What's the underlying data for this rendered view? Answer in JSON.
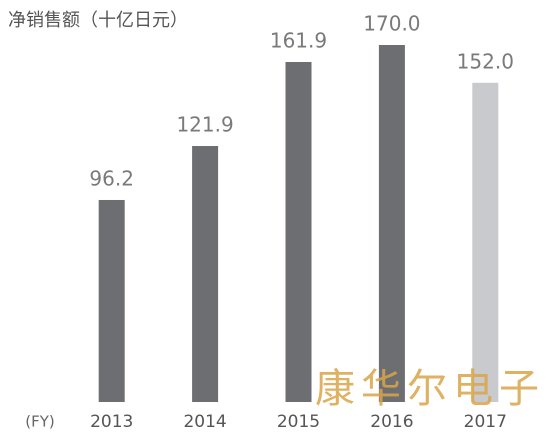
{
  "chart_data": {
    "type": "bar",
    "title": "净销售额（十亿日元）",
    "x_prefix": "(FY)",
    "categories": [
      "2013",
      "2014",
      "2015",
      "2016",
      "2017"
    ],
    "values": [
      96.2,
      121.9,
      161.9,
      170.0,
      152.0
    ],
    "value_labels": [
      "96.2",
      "121.9",
      "161.9",
      "170.0",
      "152.0"
    ],
    "colors": [
      "#6d6e72",
      "#6d6e72",
      "#6d6e72",
      "#6d6e72",
      "#c9cacd"
    ],
    "ylim": [
      0,
      180
    ]
  },
  "watermark": "康华尔电子"
}
